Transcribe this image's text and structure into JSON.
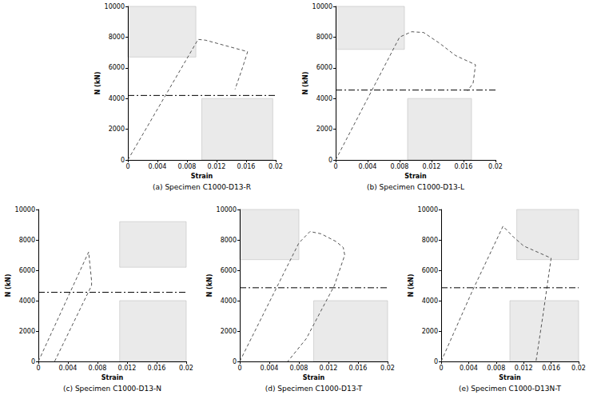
{
  "chart_data": [
    {
      "type": "line",
      "title": "(a) Specimen C1000-D13-R",
      "xlabel": "Strain",
      "ylabel": "N (kN)",
      "xlim": [
        0,
        0.02
      ],
      "xticks": [
        0,
        0.004,
        0.008,
        0.012,
        0.016,
        0.02
      ],
      "ylim": [
        0,
        10000
      ],
      "yticks": [
        0,
        2000,
        4000,
        6000,
        8000,
        10000
      ],
      "grid": false,
      "series": [
        {
          "x": [
            0,
            0.0095,
            0.0105,
            0.0162,
            0.0155,
            0.0145
          ],
          "values": [
            0,
            7850,
            7800,
            7050,
            6000,
            4600
          ],
          "color": "#555555",
          "line_style": "dashed"
        },
        {
          "x": [
            0,
            0.02
          ],
          "values": [
            4200,
            4200
          ],
          "color": "#000000",
          "line_style": "dashdot"
        }
      ]
    },
    {
      "type": "line",
      "title": "(b) Specimen C1000-D13-L",
      "xlabel": "Strain",
      "ylabel": "N (kN)",
      "xlim": [
        0,
        0.02
      ],
      "xticks": [
        0,
        0.004,
        0.008,
        0.012,
        0.016,
        0.02
      ],
      "ylim": [
        0,
        10000
      ],
      "yticks": [
        0,
        2000,
        4000,
        6000,
        8000,
        10000
      ],
      "grid": false,
      "series": [
        {
          "x": [
            0,
            0.004,
            0.008,
            0.0095,
            0.011,
            0.013,
            0.015,
            0.0175,
            0.0172,
            0.0165
          ],
          "values": [
            0,
            4000,
            8000,
            8350,
            8300,
            7600,
            6800,
            6200,
            5000,
            4500
          ],
          "color": "#555555",
          "line_style": "dashed"
        },
        {
          "x": [
            0,
            0.02
          ],
          "values": [
            4550,
            4550
          ],
          "color": "#000000",
          "line_style": "dashdot"
        }
      ]
    },
    {
      "type": "line",
      "title": "(c) Specimen C1000-D13-N",
      "xlabel": "Strain",
      "ylabel": "N (kN)",
      "xlim": [
        0,
        0.02
      ],
      "xticks": [
        0,
        0.004,
        0.008,
        0.012,
        0.016,
        0.02
      ],
      "ylim": [
        0,
        10000
      ],
      "yticks": [
        0,
        2000,
        4000,
        6000,
        8000,
        10000
      ],
      "grid": false,
      "series": [
        {
          "x": [
            0,
            0.0068,
            0.0072,
            0.0072,
            0.0022
          ],
          "values": [
            0,
            7200,
            5300,
            5000,
            0
          ],
          "color": "#555555",
          "line_style": "dashed"
        },
        {
          "x": [
            0,
            0.02
          ],
          "values": [
            4550,
            4550
          ],
          "color": "#000000",
          "line_style": "dashdot"
        }
      ]
    },
    {
      "type": "line",
      "title": "(d) Specimen C1000-D13-T",
      "xlabel": "Strain",
      "ylabel": "N (kN)",
      "xlim": [
        0,
        0.02
      ],
      "xticks": [
        0,
        0.004,
        0.008,
        0.012,
        0.016,
        0.02
      ],
      "ylim": [
        0,
        10000
      ],
      "yticks": [
        0,
        2000,
        4000,
        6000,
        8000,
        10000
      ],
      "grid": false,
      "series": [
        {
          "x": [
            0,
            0.004,
            0.008,
            0.0095,
            0.011,
            0.013,
            0.014,
            0.0142,
            0.0128,
            0.009,
            0.0065
          ],
          "values": [
            0,
            3900,
            7800,
            8550,
            8400,
            7900,
            7500,
            7000,
            5000,
            1500,
            0
          ],
          "color": "#555555",
          "line_style": "dashed"
        },
        {
          "x": [
            0,
            0.02
          ],
          "values": [
            4850,
            4850
          ],
          "color": "#000000",
          "line_style": "dashdot"
        }
      ]
    },
    {
      "type": "line",
      "title": "(e) Specimen C1000-D13N-T",
      "xlabel": "Strain",
      "ylabel": "N (kN)",
      "xlim": [
        0,
        0.02
      ],
      "xticks": [
        0,
        0.004,
        0.008,
        0.012,
        0.016,
        0.02
      ],
      "ylim": [
        0,
        10000
      ],
      "yticks": [
        0,
        2000,
        4000,
        6000,
        8000,
        10000
      ],
      "grid": false,
      "series": [
        {
          "x": [
            0,
            0.0045,
            0.009,
            0.0105,
            0.012,
            0.016,
            0.0148,
            0.0138
          ],
          "values": [
            0,
            4600,
            8900,
            8200,
            7600,
            6800,
            3000,
            0
          ],
          "color": "#555555",
          "line_style": "dashed"
        },
        {
          "x": [
            0,
            0.02
          ],
          "values": [
            4850,
            4850
          ],
          "color": "#000000",
          "line_style": "dashdot"
        }
      ]
    }
  ]
}
